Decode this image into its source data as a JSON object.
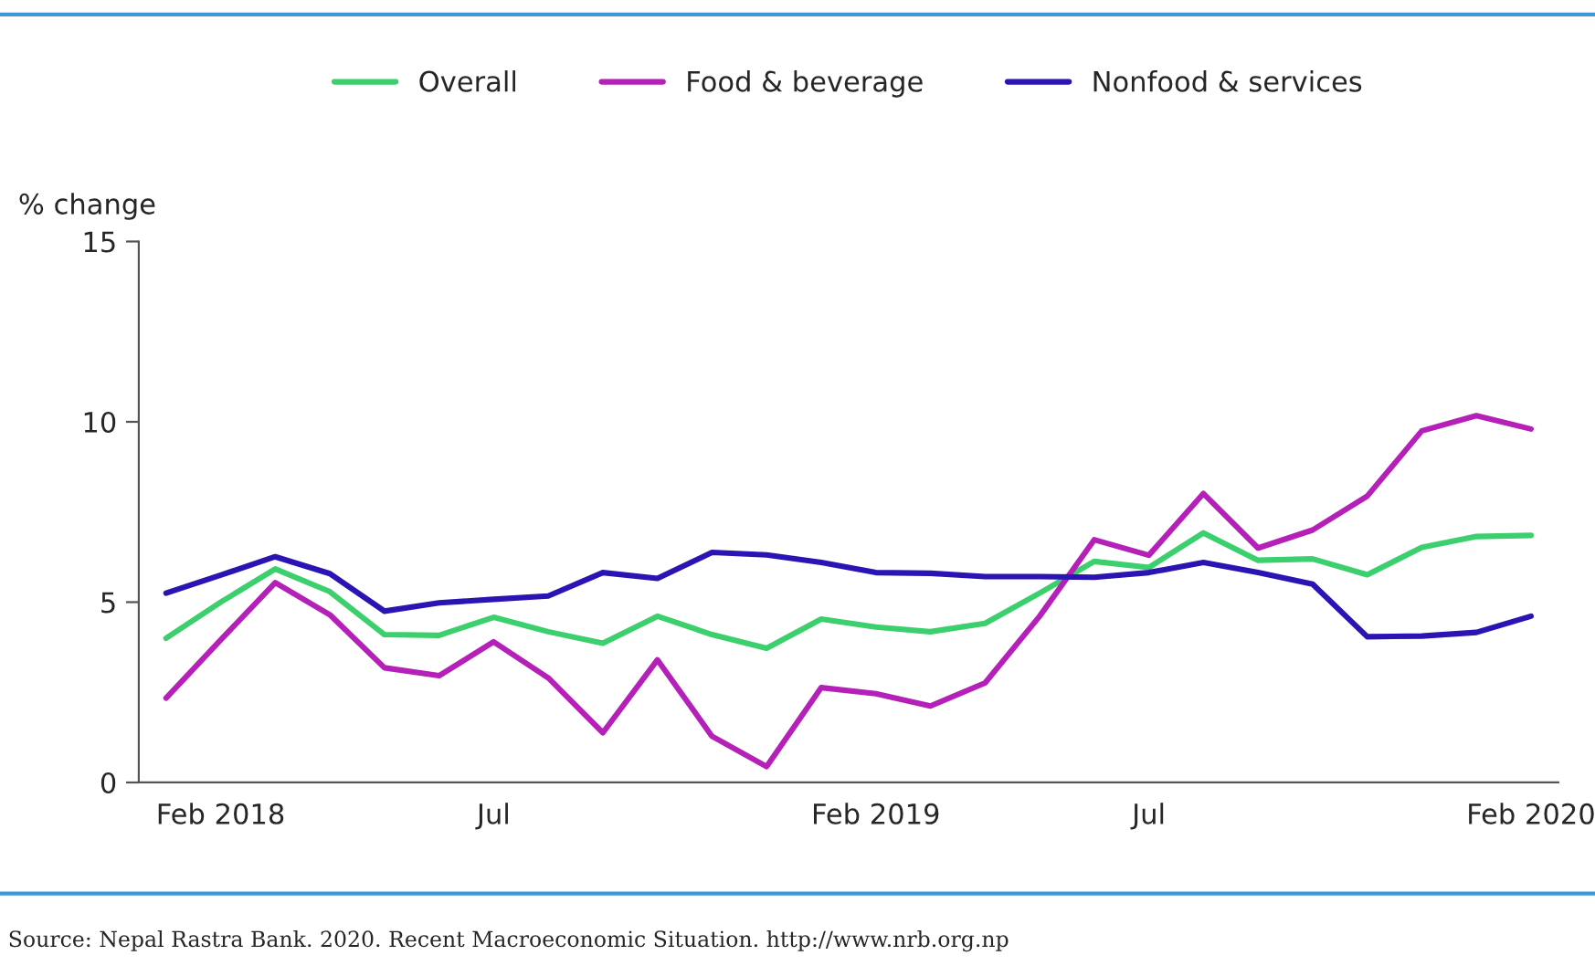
{
  "chart_data": {
    "type": "line",
    "ylabel": "% change",
    "categories": [
      null,
      "Feb 2018",
      null,
      null,
      null,
      null,
      "Jul",
      null,
      null,
      null,
      null,
      null,
      null,
      "Feb 2019",
      null,
      null,
      null,
      null,
      "Jul",
      null,
      null,
      null,
      null,
      null,
      null,
      "Feb 2020"
    ],
    "series": [
      {
        "name": "Overall",
        "color": "#3ccf6e",
        "values": [
          4.0,
          5.0,
          5.92,
          5.29,
          4.1,
          4.08,
          4.58,
          4.18,
          3.86,
          4.61,
          4.1,
          3.72,
          4.53,
          4.31,
          4.18,
          4.41,
          5.25,
          6.13,
          5.96,
          6.92,
          6.16,
          6.2,
          5.76,
          6.52,
          6.82,
          6.85
        ]
      },
      {
        "name": "Food & beverage",
        "color": "#b520b8",
        "values": [
          2.34,
          3.95,
          5.54,
          4.65,
          3.18,
          2.96,
          3.9,
          2.9,
          1.38,
          3.4,
          1.28,
          0.44,
          2.63,
          2.46,
          2.12,
          2.76,
          4.61,
          6.73,
          6.3,
          8.01,
          6.5,
          7.0,
          7.94,
          9.75,
          10.17,
          9.8
        ]
      },
      {
        "name": "Nonfood & services",
        "color": "#2a14b4",
        "values": [
          5.25,
          5.75,
          6.26,
          5.79,
          4.75,
          4.98,
          5.08,
          5.17,
          5.82,
          5.66,
          6.38,
          6.31,
          6.1,
          5.82,
          5.8,
          5.71,
          5.71,
          5.69,
          5.82,
          6.1,
          5.82,
          5.5,
          4.04,
          4.06,
          4.16,
          4.61
        ]
      }
    ],
    "ylim": [
      0,
      15
    ],
    "yticks": [
      0,
      5,
      10,
      15
    ],
    "grid": false,
    "legend": "top",
    "marker": "none",
    "line_style": "solid",
    "annotations": [
      "Source: Nepal Rastra Bank. 2020. Recent Macroeconomic Situation. http://www.nrb.org.np"
    ]
  }
}
